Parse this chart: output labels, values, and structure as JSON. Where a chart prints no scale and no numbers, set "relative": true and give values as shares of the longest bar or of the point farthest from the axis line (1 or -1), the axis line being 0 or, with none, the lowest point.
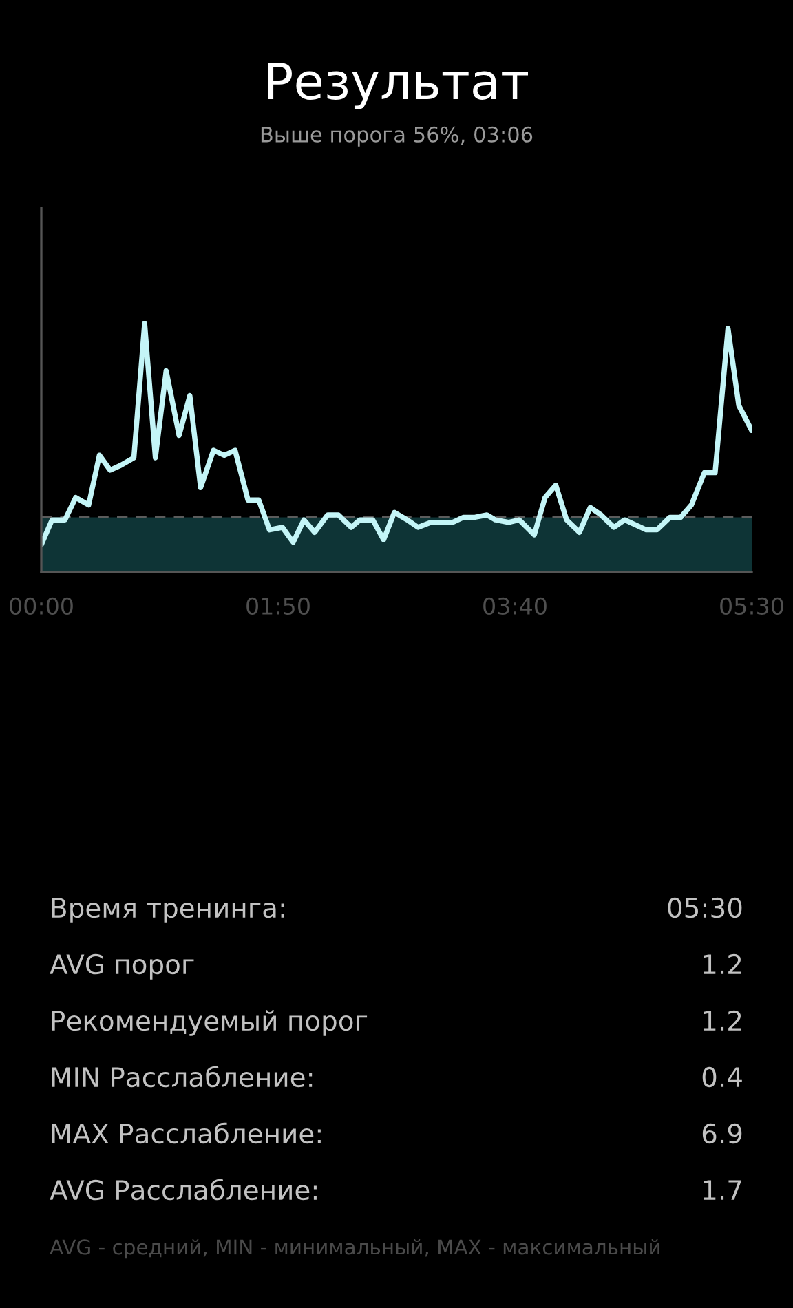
{
  "chart_data": [
    {
      "type": "line",
      "title": "Результат",
      "subtitle": "Выше порога 56%, 03:06",
      "relative": true,
      "x": [
        0,
        5,
        11,
        16,
        22,
        27,
        32,
        37,
        43,
        48,
        53,
        58,
        64,
        69,
        74,
        80,
        85,
        90,
        96,
        101,
        106,
        112,
        117,
        122,
        127,
        133,
        138,
        144,
        148,
        154,
        159,
        164,
        170,
        175,
        181,
        186,
        191,
        196,
        201,
        207,
        211,
        217,
        222,
        229,
        234,
        239,
        244,
        250,
        255,
        260,
        266,
        271,
        276,
        281,
        286,
        292,
        297,
        302,
        308,
        313,
        319,
        324,
        330
      ],
      "series": [
        {
          "color": "#c4f5f7",
          "values": [
            0.11,
            0.21,
            0.21,
            0.3,
            0.27,
            0.47,
            0.41,
            0.43,
            0.46,
            1.0,
            0.46,
            0.81,
            0.55,
            0.71,
            0.34,
            0.49,
            0.47,
            0.49,
            0.29,
            0.29,
            0.17,
            0.18,
            0.12,
            0.21,
            0.16,
            0.23,
            0.23,
            0.18,
            0.21,
            0.21,
            0.13,
            0.24,
            0.21,
            0.18,
            0.2,
            0.2,
            0.2,
            0.22,
            0.22,
            0.23,
            0.21,
            0.2,
            0.21,
            0.15,
            0.3,
            0.35,
            0.21,
            0.16,
            0.26,
            0.23,
            0.18,
            0.21,
            0.19,
            0.17,
            0.17,
            0.22,
            0.22,
            0.27,
            0.4,
            0.4,
            0.98,
            0.67,
            0.57
          ]
        }
      ],
      "xlim": [
        0,
        330
      ],
      "xticks": [
        {
          "value": 0,
          "label": "00:00"
        },
        {
          "value": 110,
          "label": "01:50"
        },
        {
          "value": 220,
          "label": "03:40"
        },
        {
          "value": 330,
          "label": "05:30"
        }
      ],
      "ref_lines": [
        {
          "axis": "y",
          "value": 0.22,
          "color": "#5c5c5c",
          "line_style": "dashed"
        }
      ],
      "bands": [
        {
          "axis": "y",
          "from": 0,
          "to": 0.22,
          "color": "#0e3436"
        }
      ],
      "tick_labels": "x",
      "marker": "none",
      "line_style": "solid"
    },
    {
      "type": "other",
      "annotations": [
        "Время тренинга:",
        "05:30",
        "AVG порог",
        "1.2",
        "Рекомендуемый порог",
        "1.2",
        "MIN Расслабление:",
        "0.4",
        "MAX Расслабление:",
        "6.9",
        "AVG Расслабление:",
        "1.7",
        "AVG - средний, MIN - минимальный, MAX - максимальный"
      ]
    }
  ]
}
